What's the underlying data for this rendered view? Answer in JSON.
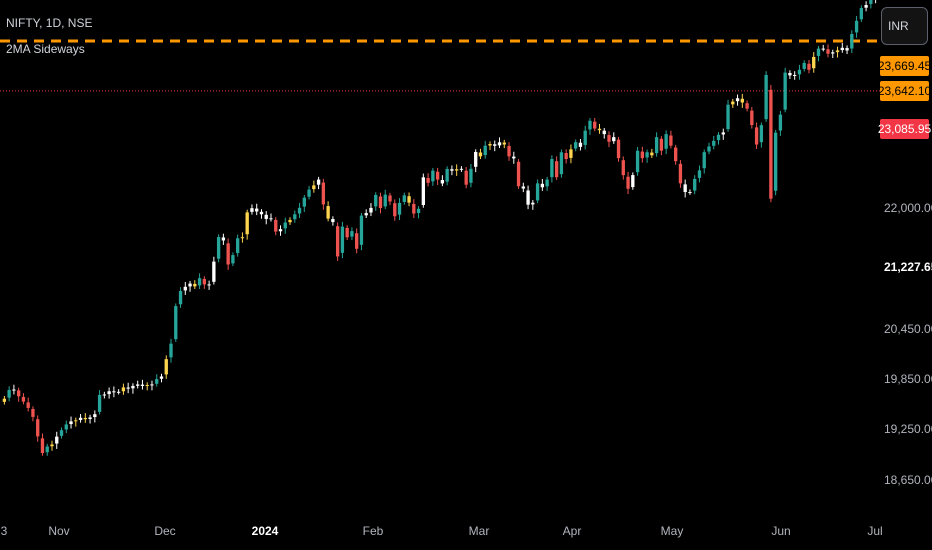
{
  "header": {
    "symbol_line": "NIFTY, 1D, NSE",
    "indicator": "2MA Sideways"
  },
  "currency_button": "INR",
  "price_labels": [
    {
      "text": "23,669.45",
      "bg": "#ff9800"
    },
    {
      "text": "23,642.10",
      "bg": "#ff9800"
    },
    {
      "text": "23,085.95",
      "bg": "#f23645"
    }
  ],
  "y_axis": {
    "ticks": [
      "22,000.00",
      "20,450.00",
      "19,850.00",
      "19,250.00",
      "18,650.00"
    ],
    "current": "21,227.65"
  },
  "x_axis": {
    "ticks": [
      "3",
      "Nov",
      "Dec",
      "2024",
      "Feb",
      "Mar",
      "Apr",
      "May",
      "Jun",
      "Jul"
    ]
  },
  "colors": {
    "up": "#26a69a",
    "down": "#ef5350",
    "white": "#ffffff",
    "sideways": "#ffd54f",
    "orange_line": "#ff9800",
    "red_line": "#f23645"
  },
  "chart_data": {
    "type": "candlestick",
    "symbol": "NIFTY",
    "interval": "1D",
    "exchange": "NSE",
    "y_range": [
      18300,
      24100
    ],
    "horizontal_lines": [
      {
        "value": 23642.1,
        "style": "dashed",
        "color": "#ff9800"
      },
      {
        "value": 23085.95,
        "style": "dotted",
        "color": "#f23645"
      }
    ],
    "closes": [
      19653,
      19750,
      19755,
      19680,
      19620,
      19550,
      19450,
      19233,
      19047,
      19120,
      19142,
      19230,
      19302,
      19366,
      19400,
      19412,
      19440,
      19424,
      19444,
      19480,
      19695,
      19700,
      19736,
      19730,
      19730,
      19779,
      19765,
      19795,
      19812,
      19795,
      19806,
      19812,
      19872,
      19901,
      20094,
      20267,
      20686,
      20855,
      20901,
      20937,
      20906,
      20997,
      20928,
      20926,
      21182,
      21456,
      21418,
      21150,
      21255,
      21442,
      21454,
      21731,
      21778,
      21741,
      21710,
      21658,
      21665,
      21517,
      21544,
      21618,
      21647,
      21710,
      21782,
      21895,
      21985,
      22032,
      22097,
      21820,
      21662,
      21623,
      21240,
      21572,
      21453,
      21522,
      21325,
      21695,
      21723,
      21781,
      21926,
      21780,
      21929,
      21853,
      21688,
      21837,
      21921,
      21840,
      21718,
      21771,
      22122,
      22061,
      22197,
      22097,
      22054,
      22215,
      22196,
      22212,
      22217,
      22040,
      22217,
      22405,
      22356,
      22475,
      22493,
      22474,
      22513,
      22488,
      22356,
      22333,
      22023,
      21997,
      21817,
      21839,
      22055,
      22011,
      22097,
      22326,
      22124,
      22402,
      22326,
      22434,
      22514,
      22462,
      22643,
      22753,
      22666,
      22648,
      22604,
      22519,
      22570,
      22336,
      22147,
      21995,
      22147,
      22419,
      22336,
      22402,
      22368,
      22570,
      22419,
      22604,
      22475,
      22302,
      22055,
      21958,
      21957,
      22104,
      22200,
      22403,
      22466,
      22529,
      22597,
      22623,
      22932,
      22967,
      23004,
      22957,
      22888,
      22705,
      22488,
      22704,
      23264,
      21884,
      22620,
      22821,
      23290,
      23259,
      23264,
      23322,
      23398,
      23322,
      23465,
      23558,
      23557,
      23501,
      23516,
      23538,
      23567,
      23537,
      23721,
      23868,
      24010,
      24044,
      24142,
      24124
    ]
  }
}
